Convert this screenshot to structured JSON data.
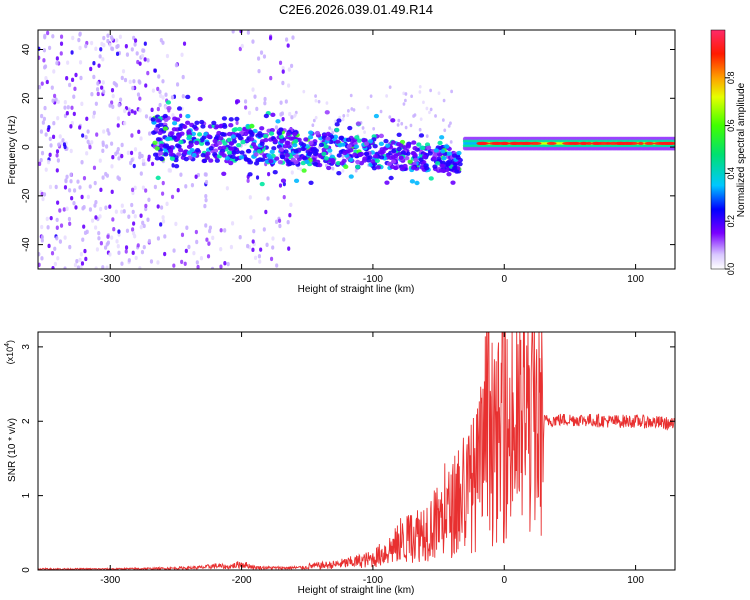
{
  "title": "C2E6.2026.039.01.49.R14",
  "chart_data": [
    {
      "type": "heatmap",
      "xlabel": "Height of straight line (km)",
      "ylabel": "Frequency (Hz)",
      "xlim": [
        -355,
        130
      ],
      "ylim": [
        -50,
        48
      ],
      "xticks": [
        -300,
        -200,
        -100,
        0,
        100
      ],
      "xtick_labels": [
        "-300",
        "-200",
        "-100",
        "0",
        "100"
      ],
      "yticks": [
        -40,
        -20,
        0,
        20,
        40
      ],
      "ytick_labels": [
        "-40",
        "-20",
        "0",
        "20",
        "40"
      ],
      "colorbar": {
        "label": "Normalized spectral amplitude",
        "range": [
          0,
          1
        ],
        "ticks": [
          0.0,
          0.2,
          0.4,
          0.6,
          0.8
        ],
        "tick_labels": [
          "0.0",
          "0.2",
          "0.4",
          "0.6",
          "0.8"
        ],
        "colormap": "rainbow"
      },
      "features": [
        {
          "region": "diffuse scatter",
          "x_range": [
            -355,
            -160
          ],
          "freq_range": [
            -50,
            48
          ],
          "amplitude": 0.15
        },
        {
          "region": "gap (no signal)",
          "x_range": [
            -242,
            -207
          ],
          "freq_range": [
            -10,
            48
          ],
          "amplitude": 0.0
        },
        {
          "region": "descending echo trace",
          "x_start": -265,
          "x_end": -40,
          "freq_start": 4,
          "freq_end": -5,
          "amplitude": 0.35
        },
        {
          "region": "stable carrier",
          "x_range": [
            -30,
            130
          ],
          "freq": 1.5,
          "amplitude": 0.9
        }
      ]
    },
    {
      "type": "line",
      "xlabel": "Height of straight line (km)",
      "ylabel": "SNR (10 * v/v)",
      "yscale_label": "(x10",
      "yscale_exponent": "4",
      "yscale_suffix": ")",
      "xlim": [
        -355,
        130
      ],
      "ylim": [
        0,
        3.2
      ],
      "xticks": [
        -300,
        -200,
        -100,
        0,
        100
      ],
      "xtick_labels": [
        "-300",
        "-200",
        "-100",
        "0",
        "100"
      ],
      "yticks": [
        0,
        1,
        2,
        3
      ],
      "ytick_labels": [
        "0",
        "1",
        "2",
        "3"
      ],
      "series": [
        {
          "color": "#e83030",
          "x": [
            -355,
            -300,
            -260,
            -230,
            -220,
            -210,
            -200,
            -190,
            -170,
            -150,
            -130,
            -110,
            -100,
            -90,
            -80,
            -70,
            -60,
            -50,
            -40,
            -30,
            -20,
            -15,
            -12,
            -10,
            -5,
            0,
            10,
            20,
            30,
            40,
            60,
            80,
            100,
            120,
            130
          ],
          "y": [
            0.02,
            0.02,
            0.03,
            0.05,
            0.08,
            0.06,
            0.12,
            0.05,
            0.04,
            0.05,
            0.07,
            0.12,
            0.15,
            0.25,
            0.35,
            0.45,
            0.55,
            0.65,
            0.8,
            1.0,
            1.25,
            1.5,
            3.2,
            1.5,
            1.7,
            1.8,
            1.9,
            1.95,
            2.0,
            2.02,
            2.02,
            2.0,
            2.0,
            1.98,
            1.95
          ]
        }
      ]
    }
  ]
}
